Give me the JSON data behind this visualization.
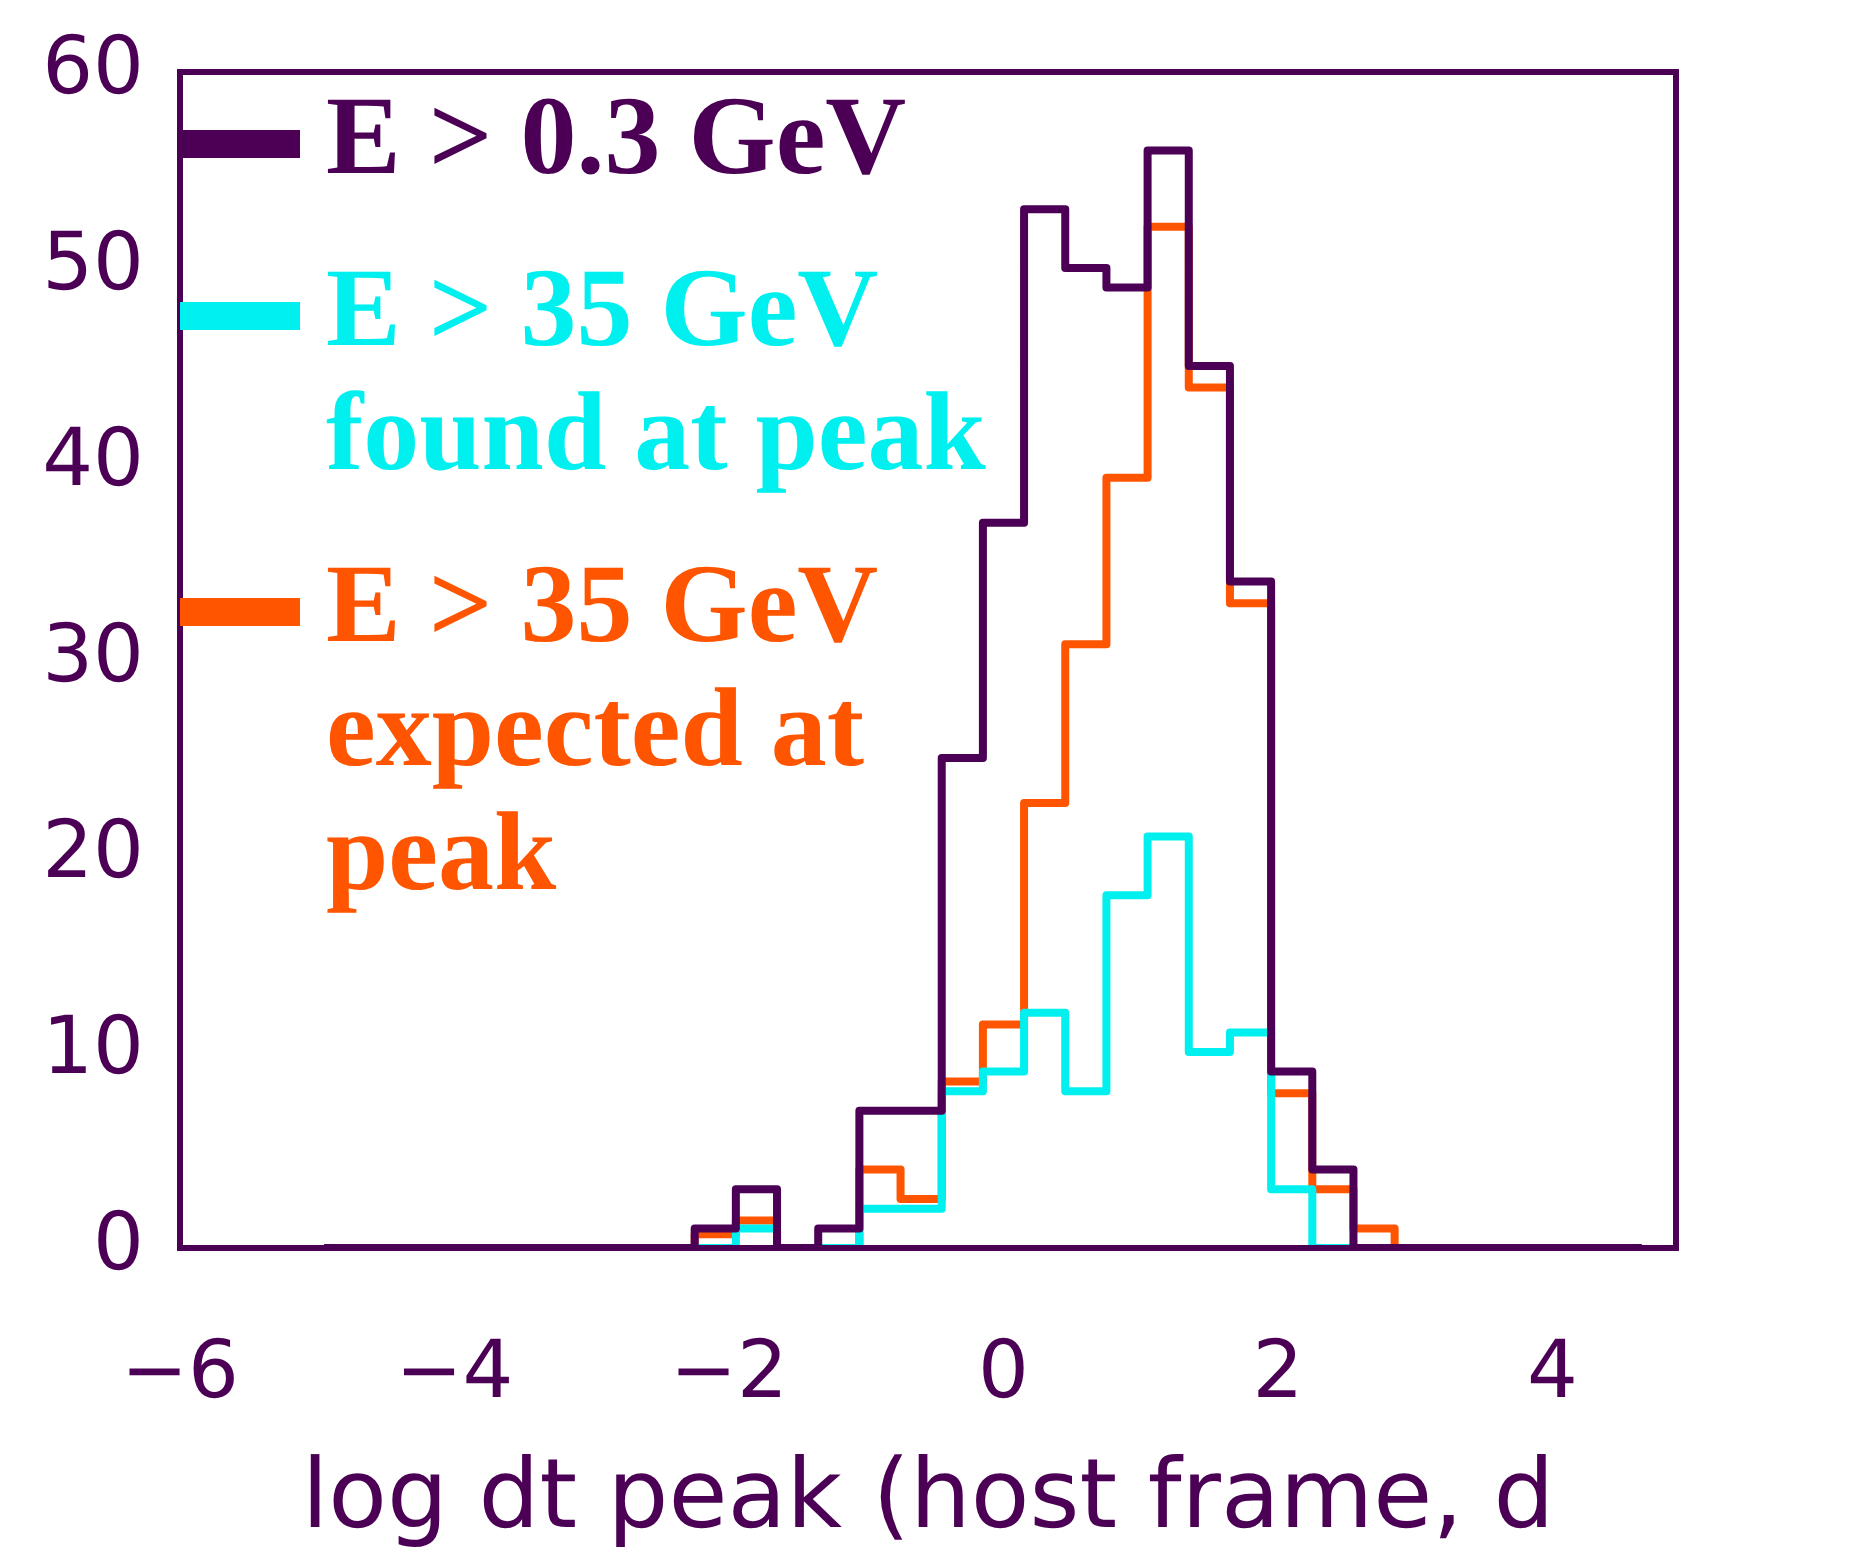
{
  "chart_data": {
    "type": "histogram",
    "xlabel": "log dt peak (host frame, d",
    "bins": [
      -4.95,
      -4.65,
      -4.35,
      -4.05,
      -3.75,
      -3.45,
      -3.15,
      -2.85,
      -2.55,
      -2.25,
      -1.95,
      -1.65,
      -1.35,
      -1.05,
      -0.75,
      -0.45,
      -0.15,
      0.15,
      0.45,
      0.75,
      1.05,
      1.35,
      1.65,
      1.95,
      2.25,
      2.55,
      2.85,
      3.15,
      3.45,
      3.75,
      4.05,
      4.35,
      4.65
    ],
    "series": [
      {
        "name": "E > 0.3 GeV",
        "color": "#4b0055",
        "values": [
          0,
          0,
          0,
          0,
          0,
          0,
          0,
          0,
          0,
          1,
          3,
          0,
          1,
          7,
          7,
          25,
          37,
          53,
          50,
          49,
          56,
          45,
          34,
          9,
          4,
          0,
          0,
          0,
          0,
          0,
          0,
          0
        ]
      },
      {
        "name": "E > 35 GeV found at peak",
        "color": "#00f0f0",
        "values": [
          0,
          0,
          0,
          0,
          0,
          0,
          0,
          0,
          0,
          0,
          1,
          0,
          0,
          2,
          2,
          8,
          9,
          12,
          8,
          18,
          21,
          10,
          11,
          3,
          0,
          0,
          0,
          0,
          0,
          0,
          0,
          0
        ]
      },
      {
        "name": "E > 35 GeV expected at peak",
        "color": "#ff5500",
        "values": [
          0,
          0,
          0,
          0,
          0,
          0,
          0,
          0,
          0,
          0.7,
          1.4,
          0,
          0,
          4,
          2.5,
          8.5,
          11.4,
          22.7,
          30.8,
          39.3,
          52.1,
          43.9,
          32.9,
          7.9,
          3,
          1,
          0,
          0,
          0,
          0,
          0,
          0
        ]
      }
    ],
    "xlim": [
      -6,
      4.9
    ],
    "xticks": [
      -6,
      -4,
      -2,
      0,
      2,
      4
    ],
    "ylim": [
      0,
      60
    ],
    "yticks": [
      0,
      10,
      20,
      30,
      40,
      50,
      60
    ],
    "grid": false,
    "legend": "top left"
  }
}
